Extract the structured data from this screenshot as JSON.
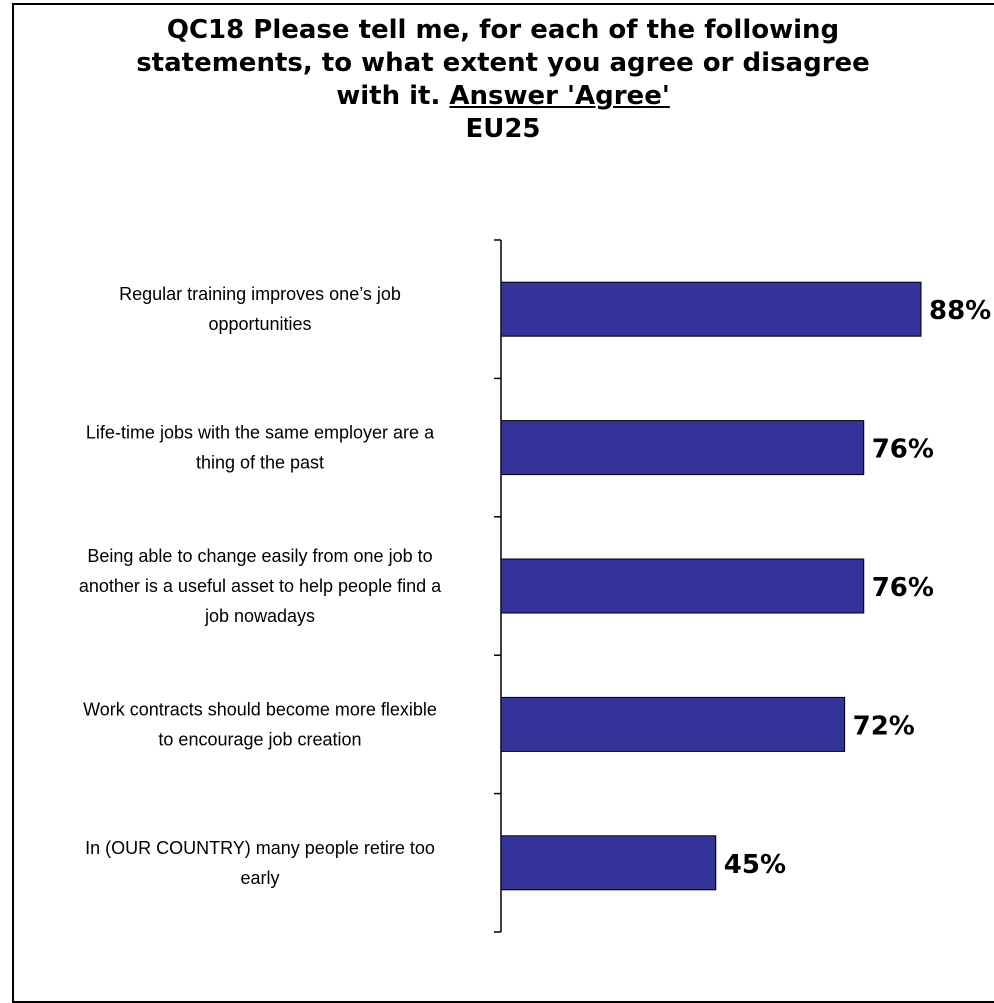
{
  "chart_data": {
    "type": "bar",
    "orientation": "horizontal",
    "title": "QC18 Please tell me, for each of the following statements, to what extent you agree or disagree with it. Answer 'Agree'",
    "title_parts": {
      "line1": "QC18 Please tell me, for each of the following",
      "line2": "statements, to what extent you agree or disagree",
      "line3_prefix": "with it. ",
      "line3_underlined": "Answer 'Agree'",
      "subtitle": "EU25"
    },
    "categories": [
      [
        "Regular training improves one’s job",
        "opportunities"
      ],
      [
        "Life-time jobs with the same employer are a",
        "thing of the past"
      ],
      [
        "Being able to change easily from one job to",
        "another is a useful asset to help people find a",
        "job nowadays"
      ],
      [
        "Work contracts should  become more flexible",
        "to encourage job creation"
      ],
      [
        "In (OUR COUNTRY) many people retire too",
        "early"
      ]
    ],
    "values": [
      88,
      76,
      76,
      72,
      45
    ],
    "value_labels": [
      "88%",
      "76%",
      "76%",
      "72%",
      "45%"
    ],
    "xlim": [
      0,
      100
    ],
    "bar_color": "#333399",
    "grid": false,
    "legend": "none"
  }
}
